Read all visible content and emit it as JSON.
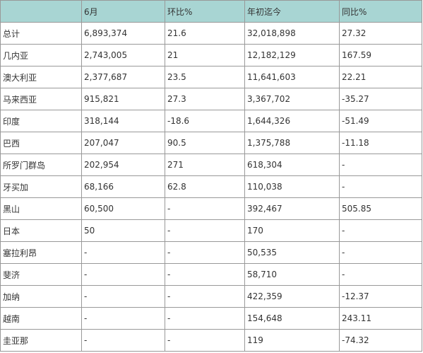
{
  "table": {
    "headers": [
      "",
      "6月",
      "环比%",
      "年初迄今",
      "同比%"
    ],
    "rows": [
      [
        "总计",
        "6,893,374",
        "21.6",
        "32,018,898",
        "27.32"
      ],
      [
        "几内亚",
        "2,743,005",
        "21",
        "12,182,129",
        "167.59"
      ],
      [
        "澳大利亚",
        "2,377,687",
        "23.5",
        "11,641,603",
        "22.21"
      ],
      [
        "马来西亚",
        "915,821",
        "27.3",
        "3,367,702",
        "-35.27"
      ],
      [
        "印度",
        "318,144",
        "-18.6",
        "1,644,326",
        "-51.49"
      ],
      [
        "巴西",
        "207,047",
        "90.5",
        "1,375,788",
        "-11.18"
      ],
      [
        "所罗门群岛",
        "202,954",
        "271",
        "618,304",
        "-"
      ],
      [
        "牙买加",
        "68,166",
        "62.8",
        "110,038",
        "-"
      ],
      [
        "黑山",
        "60,500",
        "-",
        "392,467",
        "505.85"
      ],
      [
        "日本",
        "50",
        "-",
        "170",
        "-"
      ],
      [
        "塞拉利昂",
        "-",
        "-",
        "50,535",
        "-"
      ],
      [
        "斐济",
        "-",
        "-",
        "58,710",
        "-"
      ],
      [
        "加纳",
        "-",
        "-",
        "422,359",
        "-12.37"
      ],
      [
        "越南",
        "-",
        "-",
        "154,648",
        "243.11"
      ],
      [
        "圭亚那",
        "-",
        "-",
        "119",
        "-74.32"
      ]
    ]
  },
  "colors": {
    "header_bg": "#a8d5d3",
    "border": "#999999",
    "text": "#333333"
  }
}
